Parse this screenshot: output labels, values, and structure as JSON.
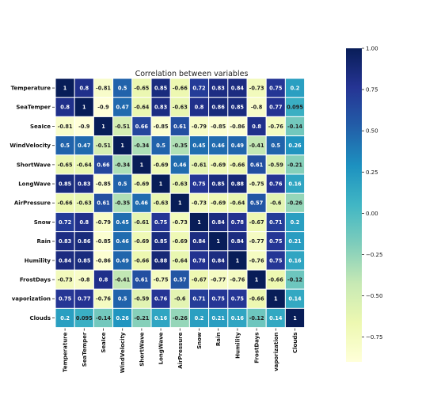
{
  "chart_data": {
    "type": "heatmap",
    "title": "Correlation between variables",
    "colormap": "YlGnBu",
    "vmin": -0.9,
    "vmax": 1.0,
    "variables": [
      "Temperature",
      "SeaTemper",
      "SeaIce",
      "WindVelocity",
      "ShortWave",
      "LongWave",
      "AirPressure",
      "Snow",
      "Rain",
      "Humility",
      "FrostDays",
      "vaporization",
      "Clouds"
    ],
    "value_labels": [
      [
        "1",
        "0.8",
        "-0.81",
        "0.5",
        "-0.65",
        "0.85",
        "-0.66",
        "0.72",
        "0.83",
        "0.84",
        "-0.73",
        "0.75",
        "0.2"
      ],
      [
        "0.8",
        "1",
        "-0.9",
        "0.47",
        "-0.64",
        "0.83",
        "-0.63",
        "0.8",
        "0.86",
        "0.85",
        "-0.8",
        "0.77",
        "0.095"
      ],
      [
        "-0.81",
        "-0.9",
        "1",
        "-0.51",
        "0.66",
        "-0.85",
        "0.61",
        "-0.79",
        "-0.85",
        "-0.86",
        "0.8",
        "-0.76",
        "-0.14"
      ],
      [
        "0.5",
        "0.47",
        "-0.51",
        "1",
        "-0.34",
        "0.5",
        "-0.35",
        "0.45",
        "0.46",
        "0.49",
        "-0.41",
        "0.5",
        "0.26"
      ],
      [
        "-0.65",
        "-0.64",
        "0.66",
        "-0.34",
        "1",
        "-0.69",
        "0.46",
        "-0.61",
        "-0.69",
        "-0.66",
        "0.61",
        "-0.59",
        "-0.21"
      ],
      [
        "0.85",
        "0.83",
        "-0.85",
        "0.5",
        "-0.69",
        "1",
        "-0.63",
        "0.75",
        "0.85",
        "0.88",
        "-0.75",
        "0.76",
        "0.16"
      ],
      [
        "-0.66",
        "-0.63",
        "0.61",
        "-0.35",
        "0.46",
        "-0.63",
        "1",
        "-0.73",
        "-0.69",
        "-0.64",
        "0.57",
        "-0.6",
        "-0.26"
      ],
      [
        "0.72",
        "0.8",
        "-0.79",
        "0.45",
        "-0.61",
        "0.75",
        "-0.73",
        "1",
        "0.84",
        "0.78",
        "-0.67",
        "0.71",
        "0.2"
      ],
      [
        "0.83",
        "0.86",
        "-0.85",
        "0.46",
        "-0.69",
        "0.85",
        "-0.69",
        "0.84",
        "1",
        "0.84",
        "-0.77",
        "0.75",
        "0.21"
      ],
      [
        "0.84",
        "0.85",
        "-0.86",
        "0.49",
        "-0.66",
        "0.88",
        "-0.64",
        "0.78",
        "0.84",
        "1",
        "-0.76",
        "0.75",
        "0.16"
      ],
      [
        "-0.73",
        "-0.8",
        "0.8",
        "-0.41",
        "0.61",
        "-0.75",
        "0.57",
        "-0.67",
        "-0.77",
        "-0.76",
        "1",
        "-0.66",
        "-0.12"
      ],
      [
        "0.75",
        "0.77",
        "-0.76",
        "0.5",
        "-0.59",
        "0.76",
        "-0.6",
        "0.71",
        "0.75",
        "0.75",
        "-0.66",
        "1",
        "0.14"
      ],
      [
        "0.2",
        "0.095",
        "-0.14",
        "0.26",
        "-0.21",
        "0.16",
        "-0.26",
        "0.2",
        "0.21",
        "0.16",
        "-0.12",
        "0.14",
        "1"
      ]
    ],
    "colorbar_ticks": [
      "1.00",
      "0.75",
      "0.50",
      "0.25",
      "0.00",
      "−0.25",
      "−0.50",
      "−0.75"
    ],
    "colorbar_tick_values": [
      1.0,
      0.75,
      0.5,
      0.25,
      0.0,
      -0.25,
      -0.5,
      -0.75
    ]
  }
}
